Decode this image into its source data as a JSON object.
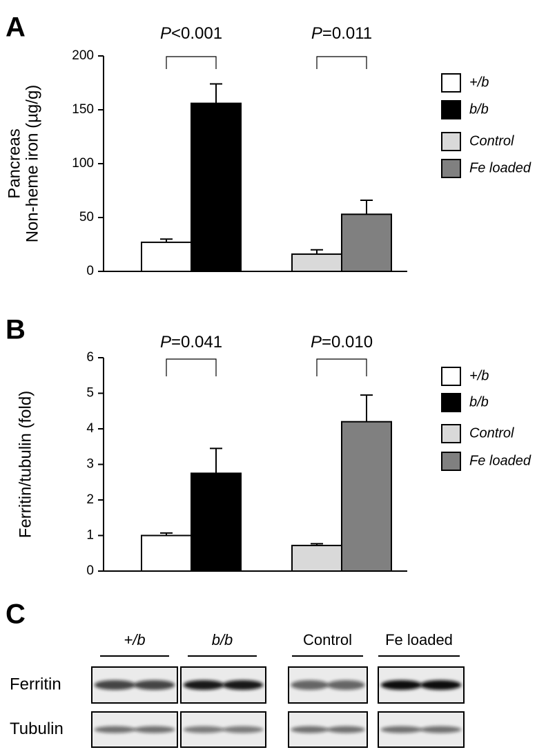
{
  "chart_data": [
    {
      "type": "bar",
      "panel": "A",
      "ylabel": [
        "Pancreas",
        "Non-heme iron (µg/g)"
      ],
      "categories": [
        null,
        null
      ],
      "series": [
        {
          "name": "+/b",
          "color": "#ffffff",
          "values": [
            27,
            null
          ],
          "errors": [
            3,
            null
          ]
        },
        {
          "name": "b/b",
          "color": "#000000",
          "values": [
            156,
            null
          ],
          "errors": [
            18,
            null
          ]
        },
        {
          "name": "Control",
          "color": "#d9d9d9",
          "values": [
            null,
            16
          ],
          "errors": [
            null,
            4
          ]
        },
        {
          "name": "Fe loaded",
          "color": "#808080",
          "values": [
            null,
            53
          ],
          "errors": [
            null,
            13
          ]
        }
      ],
      "annotations": [
        {
          "prefix": "P",
          "text": "<0.001"
        },
        {
          "prefix": "P",
          "text": "=0.011"
        }
      ],
      "ylim": [
        0,
        200
      ],
      "yticks": [
        0,
        50,
        100,
        150,
        200
      ],
      "legend": "right"
    },
    {
      "type": "bar",
      "panel": "B",
      "ylabel": [
        "Ferritin/tubulin (fold)"
      ],
      "categories": [
        null,
        null
      ],
      "series": [
        {
          "name": "+/b",
          "color": "#ffffff",
          "values": [
            1.0,
            null
          ],
          "errors": [
            0.07,
            null
          ]
        },
        {
          "name": "b/b",
          "color": "#000000",
          "values": [
            2.75,
            null
          ],
          "errors": [
            0.7,
            null
          ]
        },
        {
          "name": "Control",
          "color": "#d9d9d9",
          "values": [
            null,
            0.72
          ],
          "errors": [
            null,
            0.05
          ]
        },
        {
          "name": "Fe loaded",
          "color": "#808080",
          "values": [
            null,
            4.2
          ],
          "errors": [
            null,
            0.75
          ]
        }
      ],
      "annotations": [
        {
          "prefix": "P",
          "text": "=0.041"
        },
        {
          "prefix": "P",
          "text": "=0.010"
        }
      ],
      "ylim": [
        0,
        6
      ],
      "yticks": [
        0,
        1,
        2,
        3,
        4,
        5,
        6
      ],
      "legend": "right"
    }
  ],
  "blot": {
    "panel": "C",
    "lanes": [
      "+/b",
      "b/b",
      "Control",
      "Fe loaded"
    ],
    "rows": [
      "Ferritin",
      "Tubulin"
    ]
  }
}
